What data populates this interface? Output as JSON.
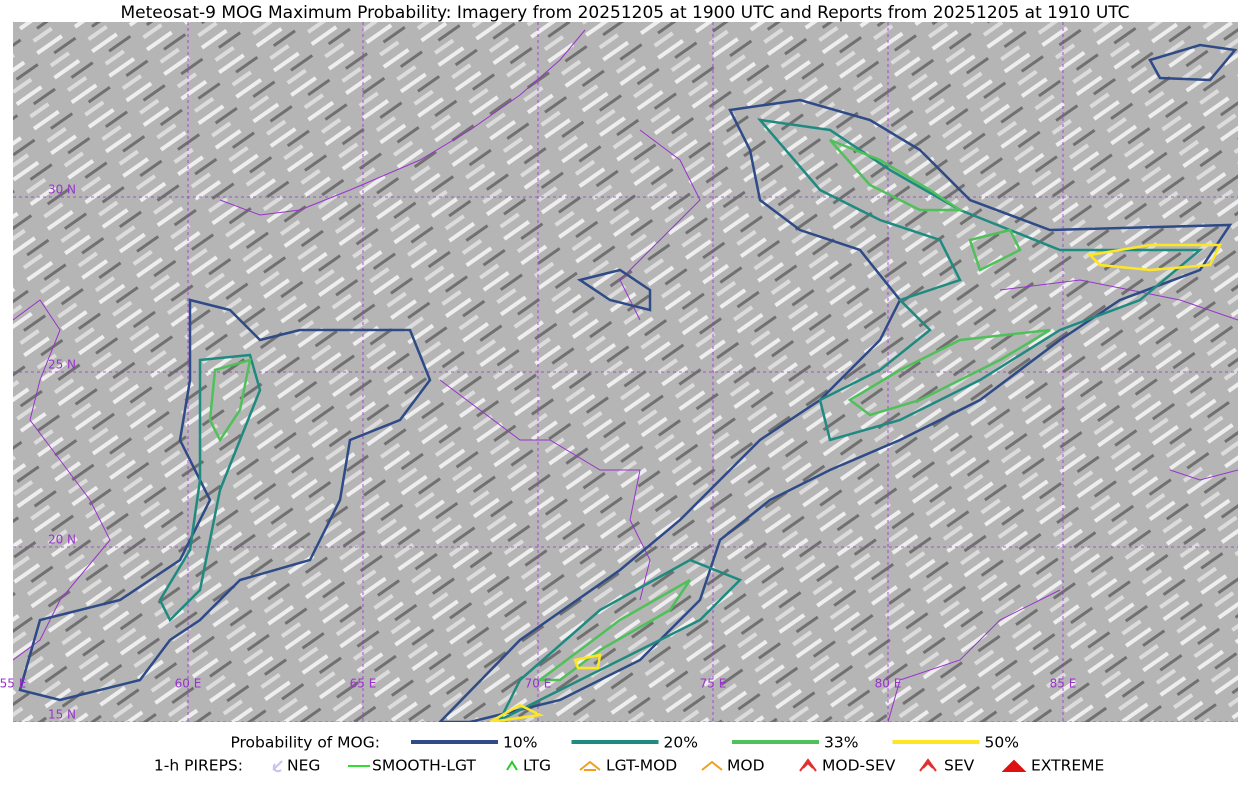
{
  "title": "Meteosat-9 MOG Maximum Probability: Imagery from 20251205 at 1900 UTC and Reports from 20251205 at 1910 UTC",
  "map": {
    "lat_labels": [
      "30 N",
      "25 N",
      "20 N",
      "15 N"
    ],
    "lon_labels": [
      "55 E",
      "60 E",
      "65 E",
      "70 E",
      "75 E",
      "80 E",
      "85 E"
    ]
  },
  "legend": {
    "probability": {
      "title": "Probability of MOG:",
      "items": [
        {
          "label": "10%",
          "color": "#2e4a87"
        },
        {
          "label": "20%",
          "color": "#1f8a80"
        },
        {
          "label": "33%",
          "color": "#4fc05a"
        },
        {
          "label": "50%",
          "color": "#fde725"
        }
      ]
    },
    "pireps": {
      "title": "1-h PIREPS:",
      "items": [
        {
          "label": "NEG",
          "color": "#c8c0f0"
        },
        {
          "label": "SMOOTH-LGT",
          "color": "#33dd33"
        },
        {
          "label": "LTG",
          "color": "#22cc22"
        },
        {
          "label": "LGT-MOD",
          "color": "#f0a020"
        },
        {
          "label": "MOD",
          "color": "#f0a020"
        },
        {
          "label": "MOD-SEV",
          "color": "#e03030"
        },
        {
          "label": "SEV",
          "color": "#e03030"
        },
        {
          "label": "EXTREME",
          "color": "#dd1111"
        }
      ]
    }
  }
}
